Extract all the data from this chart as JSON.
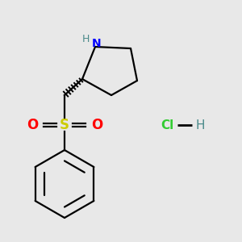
{
  "bg_color": "#e8e8e8",
  "atom_colors": {
    "N": "#0000ff",
    "H_N": "#4a8a8a",
    "S": "#cccc00",
    "O": "#ff0000",
    "C": "#000000",
    "Cl": "#33cc33",
    "H_Cl": "#4a8a8a"
  },
  "lw": 1.6,
  "figsize": [
    3.0,
    3.0
  ],
  "dpi": 100
}
